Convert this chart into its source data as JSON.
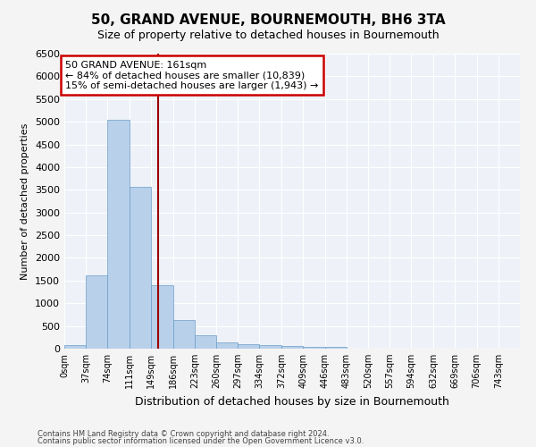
{
  "title": "50, GRAND AVENUE, BOURNEMOUTH, BH6 3TA",
  "subtitle": "Size of property relative to detached houses in Bournemouth",
  "xlabel": "Distribution of detached houses by size in Bournemouth",
  "ylabel": "Number of detached properties",
  "footer_line1": "Contains HM Land Registry data © Crown copyright and database right 2024.",
  "footer_line2": "Contains public sector information licensed under the Open Government Licence v3.0.",
  "bin_edges": [
    0,
    37,
    74,
    111,
    149,
    186,
    223,
    260,
    297,
    334,
    372,
    409,
    446,
    483,
    520,
    557,
    594,
    632,
    669,
    706,
    743
  ],
  "bar_heights": [
    75,
    1625,
    5050,
    3575,
    1400,
    625,
    290,
    140,
    100,
    80,
    60,
    45,
    30,
    0,
    0,
    0,
    0,
    0,
    0,
    0
  ],
  "bar_color": "#b8d0ea",
  "bar_edgecolor": "#6b9dc8",
  "property_size": 161,
  "vline_color": "#9b0000",
  "annotation_line1": "50 GRAND AVENUE: 161sqm",
  "annotation_line2": "← 84% of detached houses are smaller (10,839)",
  "annotation_line3": "15% of semi-detached houses are larger (1,943) →",
  "annotation_box_color": "#ffffff",
  "annotation_box_edgecolor": "#cc0000",
  "ylim": [
    0,
    6500
  ],
  "yticks": [
    0,
    500,
    1000,
    1500,
    2000,
    2500,
    3000,
    3500,
    4000,
    4500,
    5000,
    5500,
    6000,
    6500
  ],
  "background_color": "#eef2f8",
  "grid_color": "#ffffff",
  "fig_background": "#f4f4f4",
  "tick_labels": [
    "0sqm",
    "37sqm",
    "74sqm",
    "111sqm",
    "149sqm",
    "186sqm",
    "223sqm",
    "260sqm",
    "297sqm",
    "334sqm",
    "372sqm",
    "409sqm",
    "446sqm",
    "483sqm",
    "520sqm",
    "557sqm",
    "594sqm",
    "632sqm",
    "669sqm",
    "706sqm",
    "743sqm"
  ],
  "title_fontsize": 11,
  "subtitle_fontsize": 9,
  "ylabel_fontsize": 8,
  "xlabel_fontsize": 9,
  "ytick_fontsize": 8,
  "xtick_fontsize": 7,
  "annotation_fontsize": 8,
  "footer_fontsize": 6
}
